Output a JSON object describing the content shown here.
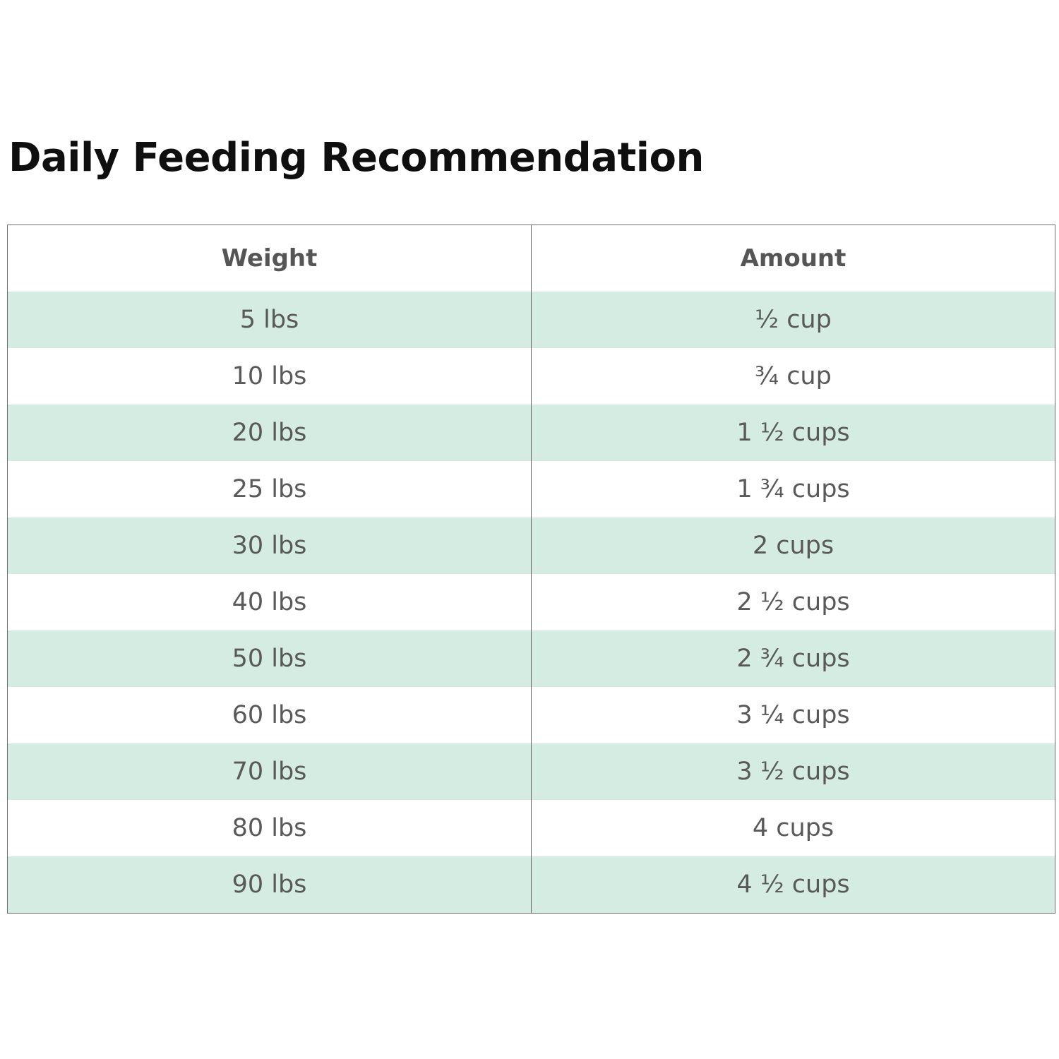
{
  "title": "Daily Feeding Recommendation",
  "table": {
    "headers": [
      "Weight",
      "Amount"
    ],
    "rows": [
      [
        "5 lbs",
        "½ cup"
      ],
      [
        "10 lbs",
        "¾ cup"
      ],
      [
        "20 lbs",
        "1 ½ cups"
      ],
      [
        "25 lbs",
        "1 ¾ cups"
      ],
      [
        "30 lbs",
        "2 cups"
      ],
      [
        "40 lbs",
        "2 ½ cups"
      ],
      [
        "50 lbs",
        "2 ¾ cups"
      ],
      [
        "60 lbs",
        "3 ¼ cups"
      ],
      [
        "70 lbs",
        "3 ½ cups"
      ],
      [
        "80 lbs",
        "4 cups"
      ],
      [
        "90 lbs",
        "4 ½ cups"
      ]
    ],
    "stripe_color": "#d4ece2",
    "border_color": "#6f6f6f",
    "text_color": "#595959"
  }
}
